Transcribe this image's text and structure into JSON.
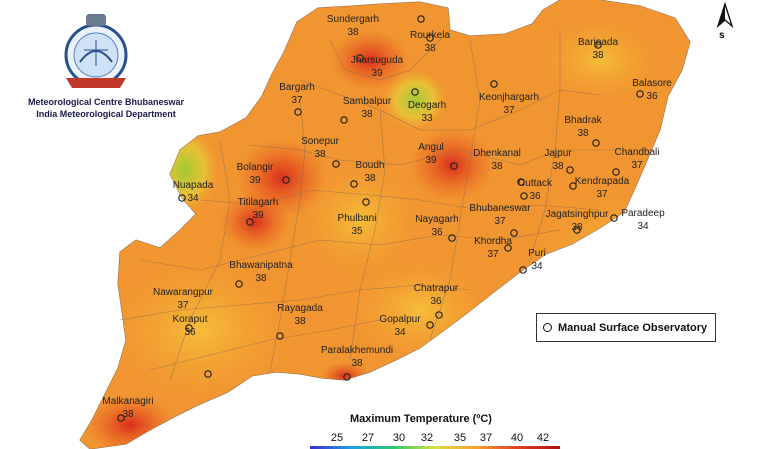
{
  "org": {
    "line1": "Meteorological Centre Bhubaneswar",
    "line2": "India Meteorological Department"
  },
  "legend": {
    "label": "Manual Surface Observatory"
  },
  "colorbar": {
    "title": "Maximum Temperature (ºC)",
    "ticks": [
      "25",
      "27",
      "30",
      "32",
      "35",
      "37",
      "40",
      "42"
    ]
  },
  "north_label": "s",
  "stations": [
    {
      "name": "Sundergarh",
      "value": "38"
    },
    {
      "name": "Rourkela",
      "value": "38"
    },
    {
      "name": "Jharsuguda",
      "value": "39"
    },
    {
      "name": "Baripada",
      "value": "38"
    },
    {
      "name": "Balasore",
      "value": "36"
    },
    {
      "name": "Bargarh",
      "value": "37"
    },
    {
      "name": "Sambalpur",
      "value": "38"
    },
    {
      "name": "Deogarh",
      "value": "33"
    },
    {
      "name": "Keonjhargarh",
      "value": "37"
    },
    {
      "name": "Bhadrak",
      "value": "38"
    },
    {
      "name": "Chandbali",
      "value": "37"
    },
    {
      "name": "Sonepur",
      "value": "38"
    },
    {
      "name": "Angul",
      "value": "39"
    },
    {
      "name": "Dhenkanal",
      "value": "38"
    },
    {
      "name": "Jajpur",
      "value": "38"
    },
    {
      "name": "Bolangir",
      "value": "39"
    },
    {
      "name": "Boudh",
      "value": "38"
    },
    {
      "name": "Cuttack",
      "value": "36"
    },
    {
      "name": "Kendrapada",
      "value": "37"
    },
    {
      "name": "Nuapada",
      "value": "34"
    },
    {
      "name": "Titilagarh",
      "value": "39"
    },
    {
      "name": "Phulbani",
      "value": "35"
    },
    {
      "name": "Nayagarh",
      "value": "36"
    },
    {
      "name": "Bhubaneswar",
      "value": "37"
    },
    {
      "name": "Jagatsinghpur",
      "value": "38"
    },
    {
      "name": "Paradeep",
      "value": "34"
    },
    {
      "name": "Khordha",
      "value": "37"
    },
    {
      "name": "Puri",
      "value": "34"
    },
    {
      "name": "Bhawanipatna",
      "value": "38"
    },
    {
      "name": "Nawarangpur",
      "value": "37"
    },
    {
      "name": "Chatrapur",
      "value": "36"
    },
    {
      "name": "Rayagada",
      "value": "38"
    },
    {
      "name": "Gopalpur",
      "value": "34"
    },
    {
      "name": "Koraput",
      "value": "36"
    },
    {
      "name": "Paralakhemundi",
      "value": "38"
    },
    {
      "name": "Malkanagiri",
      "value": "38"
    }
  ]
}
